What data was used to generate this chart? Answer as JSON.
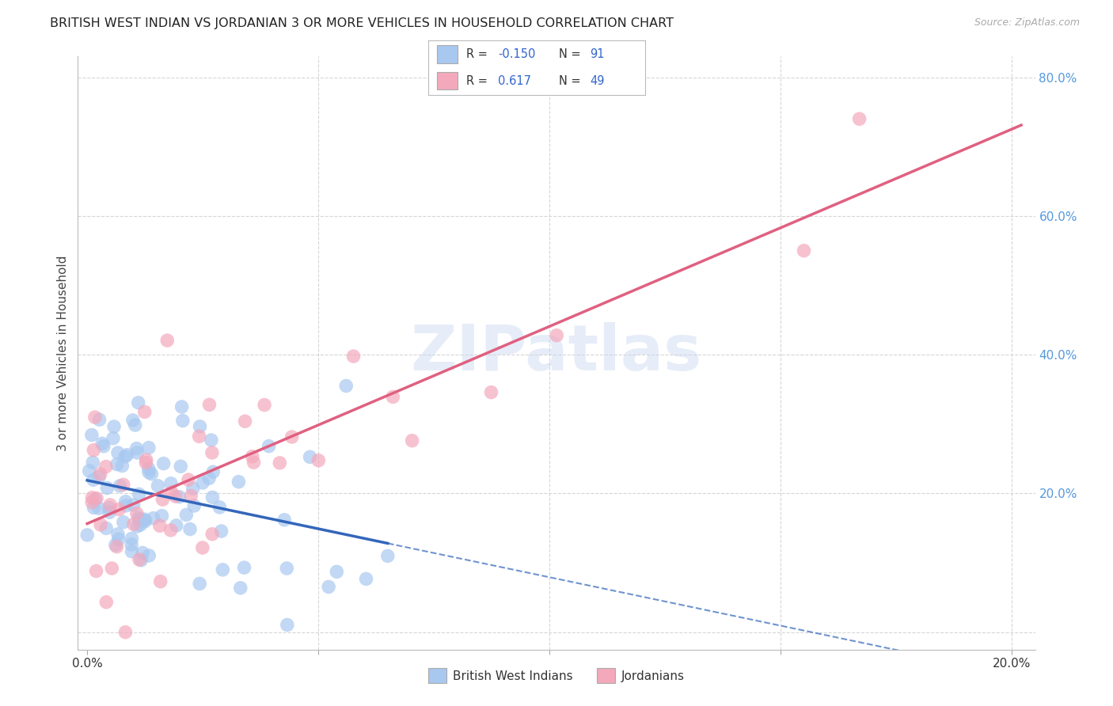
{
  "title": "BRITISH WEST INDIAN VS JORDANIAN 3 OR MORE VEHICLES IN HOUSEHOLD CORRELATION CHART",
  "source": "Source: ZipAtlas.com",
  "ylabel": "3 or more Vehicles in Household",
  "legend_labels": [
    "British West Indians",
    "Jordanians"
  ],
  "legend_r": [
    -0.15,
    0.617
  ],
  "legend_n": [
    91,
    49
  ],
  "blue_color": "#A8C8F0",
  "pink_color": "#F4A8BC",
  "blue_line_color": "#3366BB",
  "pink_line_color": "#E06080",
  "watermark": "ZIPatlas",
  "xmin": -0.002,
  "xmax": 0.205,
  "ymin": -0.025,
  "ymax": 0.83,
  "xtick_positions": [
    0.0,
    0.05,
    0.1,
    0.15,
    0.2
  ],
  "xtick_labels_show": [
    "0.0%",
    "",
    "",
    "",
    "20.0%"
  ],
  "yticks_right": [
    0.0,
    0.2,
    0.4,
    0.6,
    0.8
  ],
  "ytick_labels_right": [
    "",
    "20.0%",
    "40.0%",
    "60.0%",
    "80.0%"
  ],
  "background_color": "#FFFFFF",
  "grid_color": "#CCCCCC",
  "title_fontsize": 11.5,
  "axis_label_fontsize": 10
}
